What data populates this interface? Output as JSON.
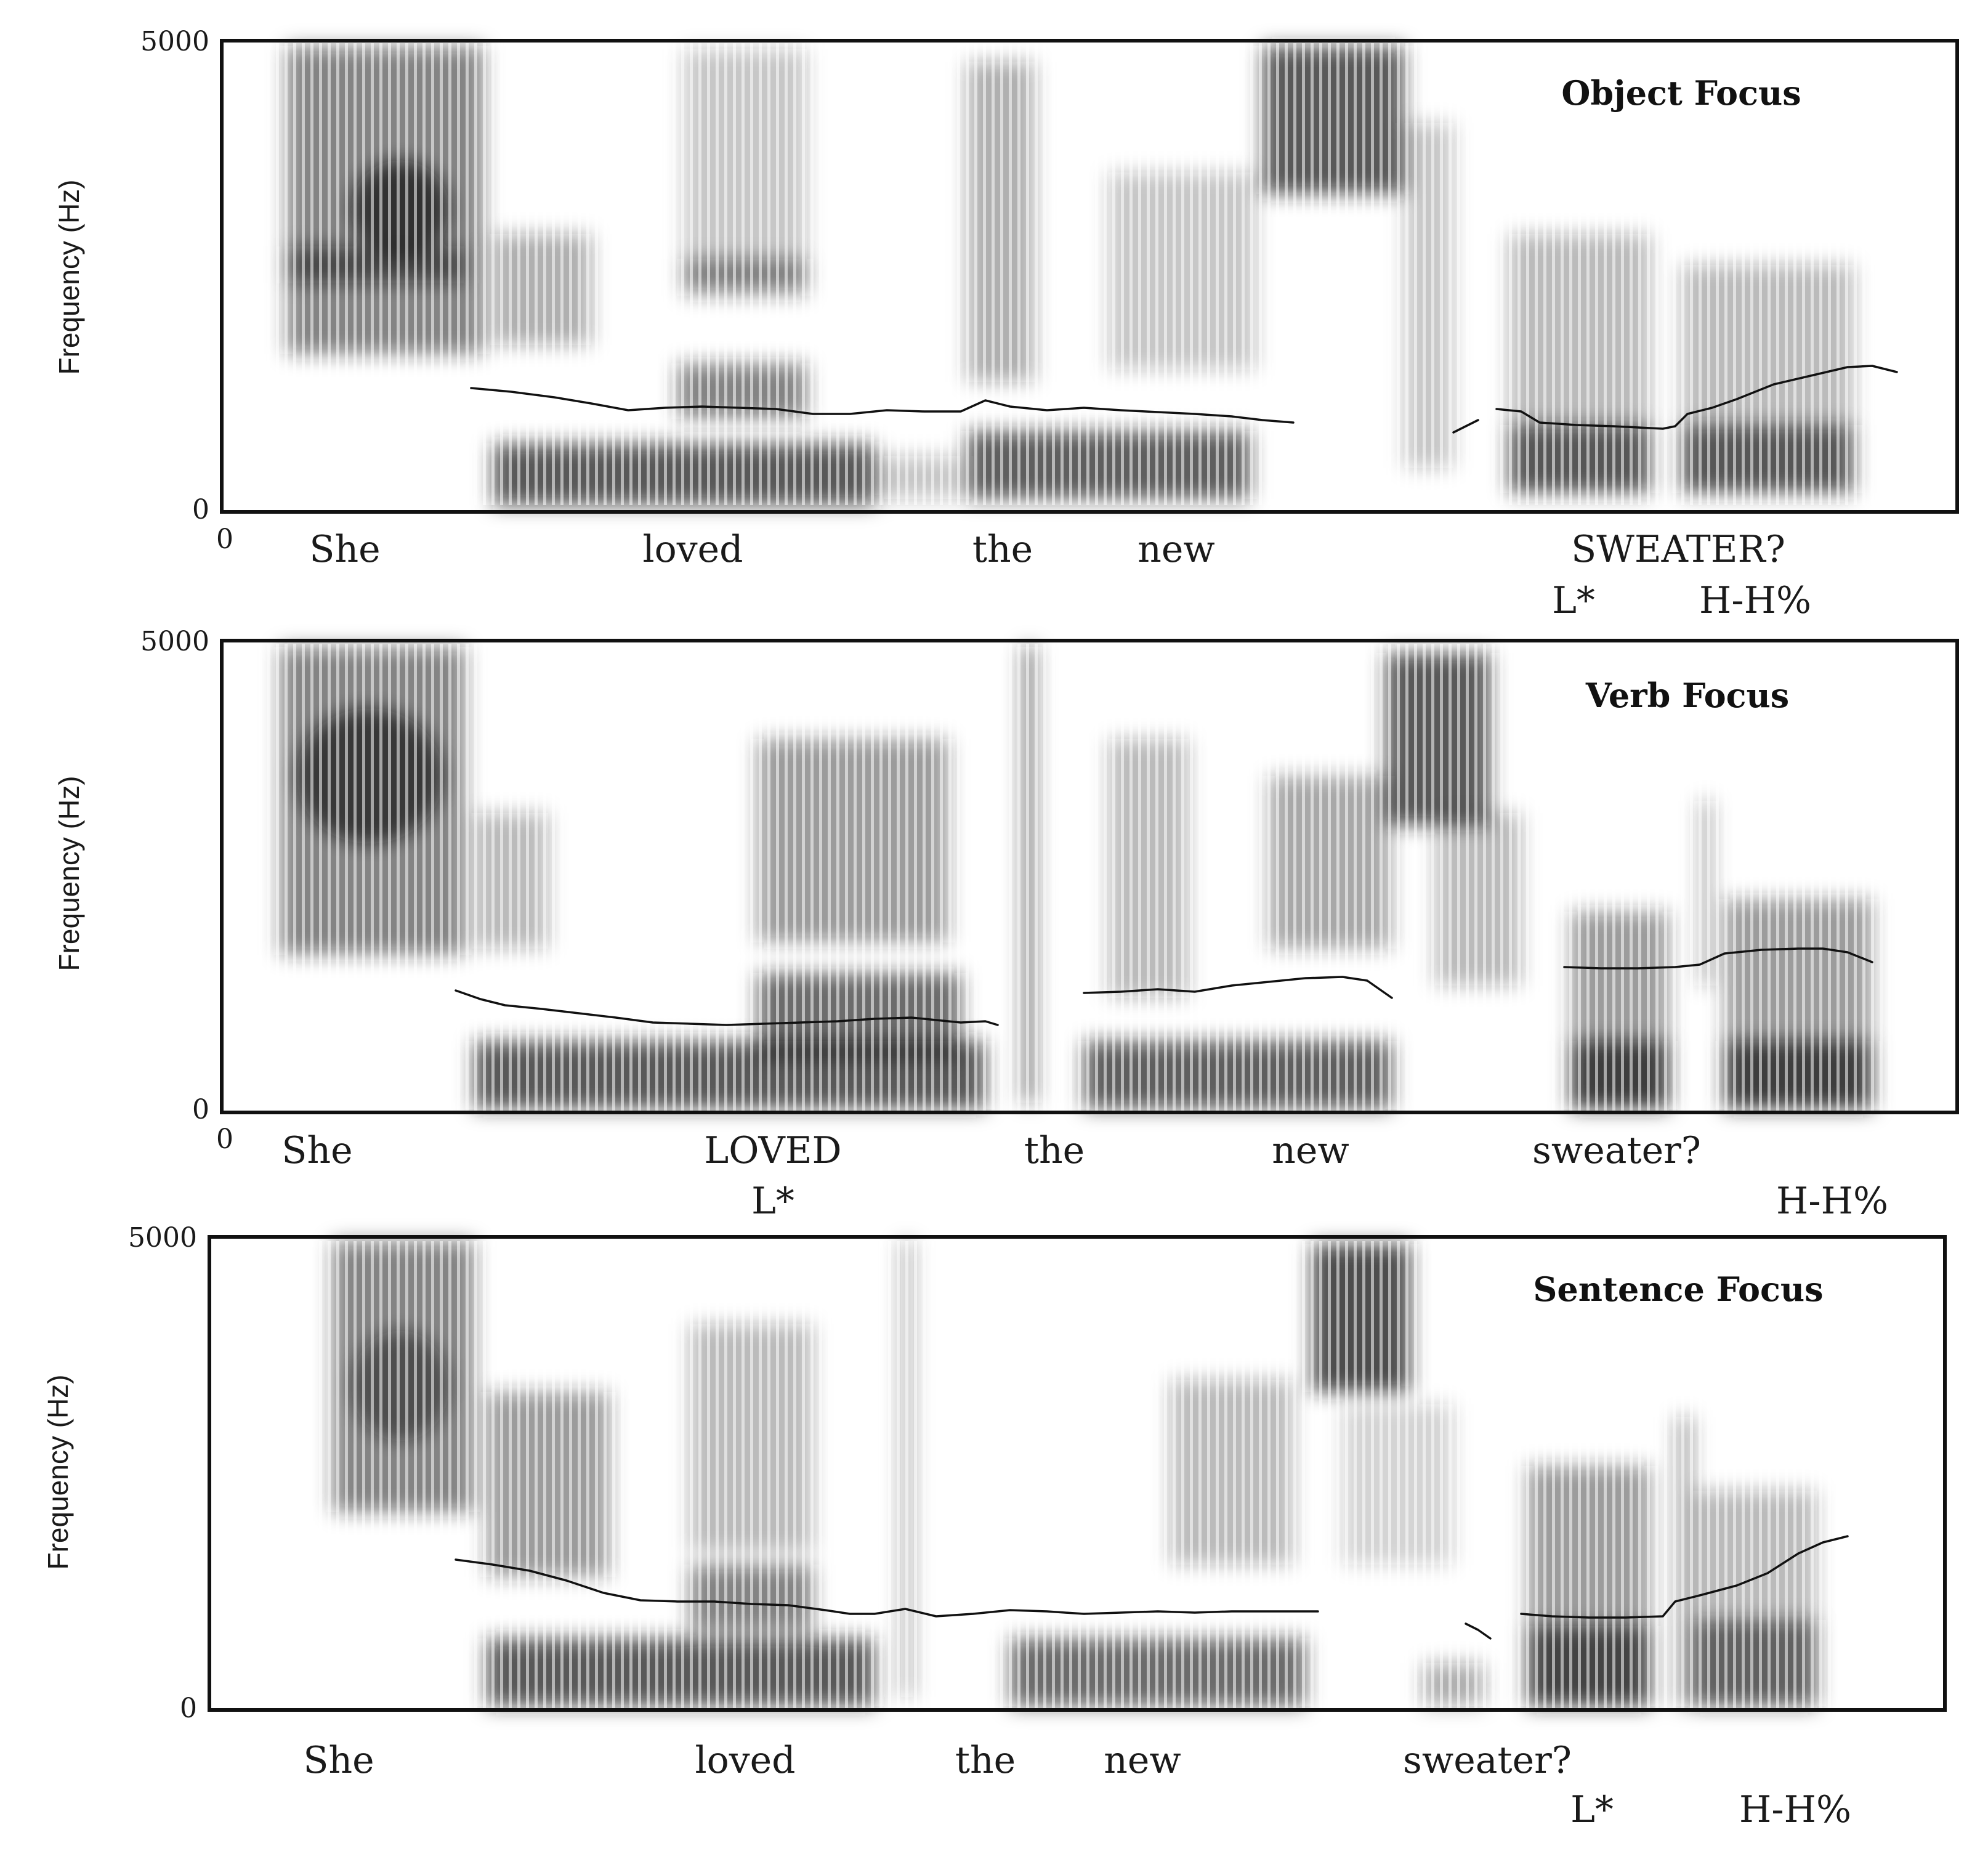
{
  "panels": [
    {
      "title": "Object Focus",
      "y_axis_label": "Frequency (Hz)",
      "y_max_label": "5000",
      "y_min_label": "0",
      "x_origin_label": "0",
      "words": [
        "She",
        "loved",
        "the",
        "new",
        "SWEATER?"
      ],
      "tones": [
        "L*",
        "H-H%"
      ]
    },
    {
      "title": "Verb Focus",
      "y_axis_label": "Frequency (Hz)",
      "y_max_label": "5000",
      "y_min_label": "0",
      "x_origin_label": "0",
      "words": [
        "She",
        "LOVED",
        "the",
        "new",
        "sweater?"
      ],
      "tones": [
        "L*",
        "H-H%"
      ]
    },
    {
      "title": "Sentence Focus",
      "y_axis_label": "Frequency (Hz)",
      "y_max_label": "5000",
      "y_min_label": "0",
      "words": [
        "She",
        "loved",
        "the",
        "new",
        "sweater?"
      ],
      "tones": [
        "L*",
        "H-H%"
      ]
    }
  ],
  "colors": {
    "frame": "#111111",
    "spectrogram_ink": "#202020",
    "background": "#ffffff"
  }
}
